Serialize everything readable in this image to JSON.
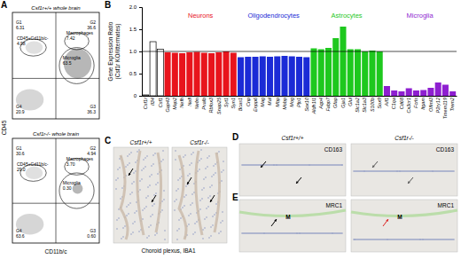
{
  "chart_data": {
    "type": "bar",
    "ylabel": [
      "Gene Expression Ratio",
      "(Csf1r KO/littermates)"
    ],
    "categories": [
      "Csf1r",
      "Il34",
      "Csf1",
      "Gap43",
      "Map2",
      "Nefh",
      "Nefl",
      "Nefm",
      "Pvalb",
      "Rbfox3",
      "Snap25",
      "Syt1",
      "Syn1",
      "Bcas1",
      "Cnp",
      "Enpp6",
      "Mag",
      "Mal",
      "Mbp",
      "Mobp",
      "Mog",
      "Plp1",
      "Sox10",
      "Aldh1l1",
      "Aqp4",
      "Fabp7",
      "Gfap",
      "Gja1",
      "Glul",
      "Slc1a2",
      "Slc1a3",
      "S100b",
      "Sox9",
      "Aif1",
      "C1qa",
      "Cd68",
      "Cx3cr1",
      "Fcrls",
      "Itgam",
      "Olfml3",
      "P2ry12",
      "Tmem119",
      "Trem2"
    ],
    "values": [
      0.02,
      1.22,
      1.05,
      0.98,
      0.97,
      0.96,
      0.98,
      0.99,
      0.97,
      0.96,
      0.98,
      1.0,
      0.97,
      0.87,
      0.88,
      0.88,
      0.89,
      0.88,
      0.89,
      0.9,
      0.89,
      0.88,
      0.87,
      1.07,
      1.05,
      1.08,
      1.3,
      1.56,
      1.05,
      1.05,
      1.0,
      1.02,
      1.0,
      0.22,
      0.12,
      0.1,
      0.17,
      0.12,
      0.13,
      0.18,
      0.3,
      0.25,
      0.1
    ],
    "colors": [
      "#ffffff",
      "#ffffff",
      "#ffffff",
      "#e8141c",
      "#e8141c",
      "#e8141c",
      "#e8141c",
      "#e8141c",
      "#e8141c",
      "#e8141c",
      "#e8141c",
      "#e8141c",
      "#e8141c",
      "#1b2bd6",
      "#1b2bd6",
      "#1b2bd6",
      "#1b2bd6",
      "#1b2bd6",
      "#1b2bd6",
      "#1b2bd6",
      "#1b2bd6",
      "#1b2bd6",
      "#1b2bd6",
      "#1ec81e",
      "#1ec81e",
      "#1ec81e",
      "#1ec81e",
      "#1ec81e",
      "#1ec81e",
      "#1ec81e",
      "#1ec81e",
      "#1ec81e",
      "#1ec81e",
      "#8e1fd0",
      "#8e1fd0",
      "#8e1fd0",
      "#8e1fd0",
      "#8e1fd0",
      "#8e1fd0",
      "#8e1fd0",
      "#8e1fd0",
      "#8e1fd0",
      "#8e1fd0"
    ],
    "group_labels": [
      {
        "label": "Neurons",
        "color": "#e8141c"
      },
      {
        "label": "Oligodendrocytes",
        "color": "#1b2bd6"
      },
      {
        "label": "Astrocytes",
        "color": "#1ec81e"
      },
      {
        "label": "Microglia",
        "color": "#8e1fd0"
      }
    ],
    "reference_line": 1,
    "ylim": [
      0,
      2
    ],
    "yticks": [
      0,
      0.5,
      {
        "value": 1,
        "label": "1.0"
      },
      1.5,
      {
        "value": 2,
        "label": "2.0"
      }
    ],
    "grid": false
  },
  "panels": {
    "letters": [
      "A",
      "B",
      "C",
      "D",
      "E"
    ],
    "flow": {
      "x_label": "CD11b/c",
      "y_label": "CD45",
      "plots": [
        {
          "title": "Csf1r+/+ whole brain",
          "gates": [
            {
              "label": "G1",
              "value": "6.31"
            },
            {
              "label": "CD45+Cd11b/c-",
              "value": "4.98"
            },
            {
              "label": "Macrophages",
              "value": "7.42"
            },
            {
              "label": "G2",
              "value": "36.6"
            },
            {
              "label": "Microglia",
              "value": "63.5"
            },
            {
              "label": "G3",
              "value": "36.3"
            },
            {
              "label": "G4",
              "value": "20.9"
            }
          ]
        },
        {
          "title": "Csf1r-/- whole brain",
          "gates": [
            {
              "label": "G1",
              "value": "30.6"
            },
            {
              "label": "CD45+Cd11b/c-",
              "value": "29.0"
            },
            {
              "label": "Macrophages",
              "value": "3.70"
            },
            {
              "label": "G2",
              "value": "4.94"
            },
            {
              "label": "Microglia",
              "value": "0.30"
            },
            {
              "label": "G3",
              "value": "0.60"
            },
            {
              "label": "G4",
              "value": "63.6"
            }
          ]
        }
      ]
    },
    "choroid": {
      "caption": "Choroid plexus, IBA1",
      "columns": [
        "Csf1r+/+",
        "Csf1r-/-"
      ]
    },
    "stain_rows": {
      "columns": [
        "Csf1r+/+",
        "Csf1r-/-"
      ],
      "rows": [
        {
          "stain": "CD163"
        },
        {
          "stain": "MRC1",
          "marks": [
            "M",
            "M"
          ]
        }
      ]
    }
  }
}
